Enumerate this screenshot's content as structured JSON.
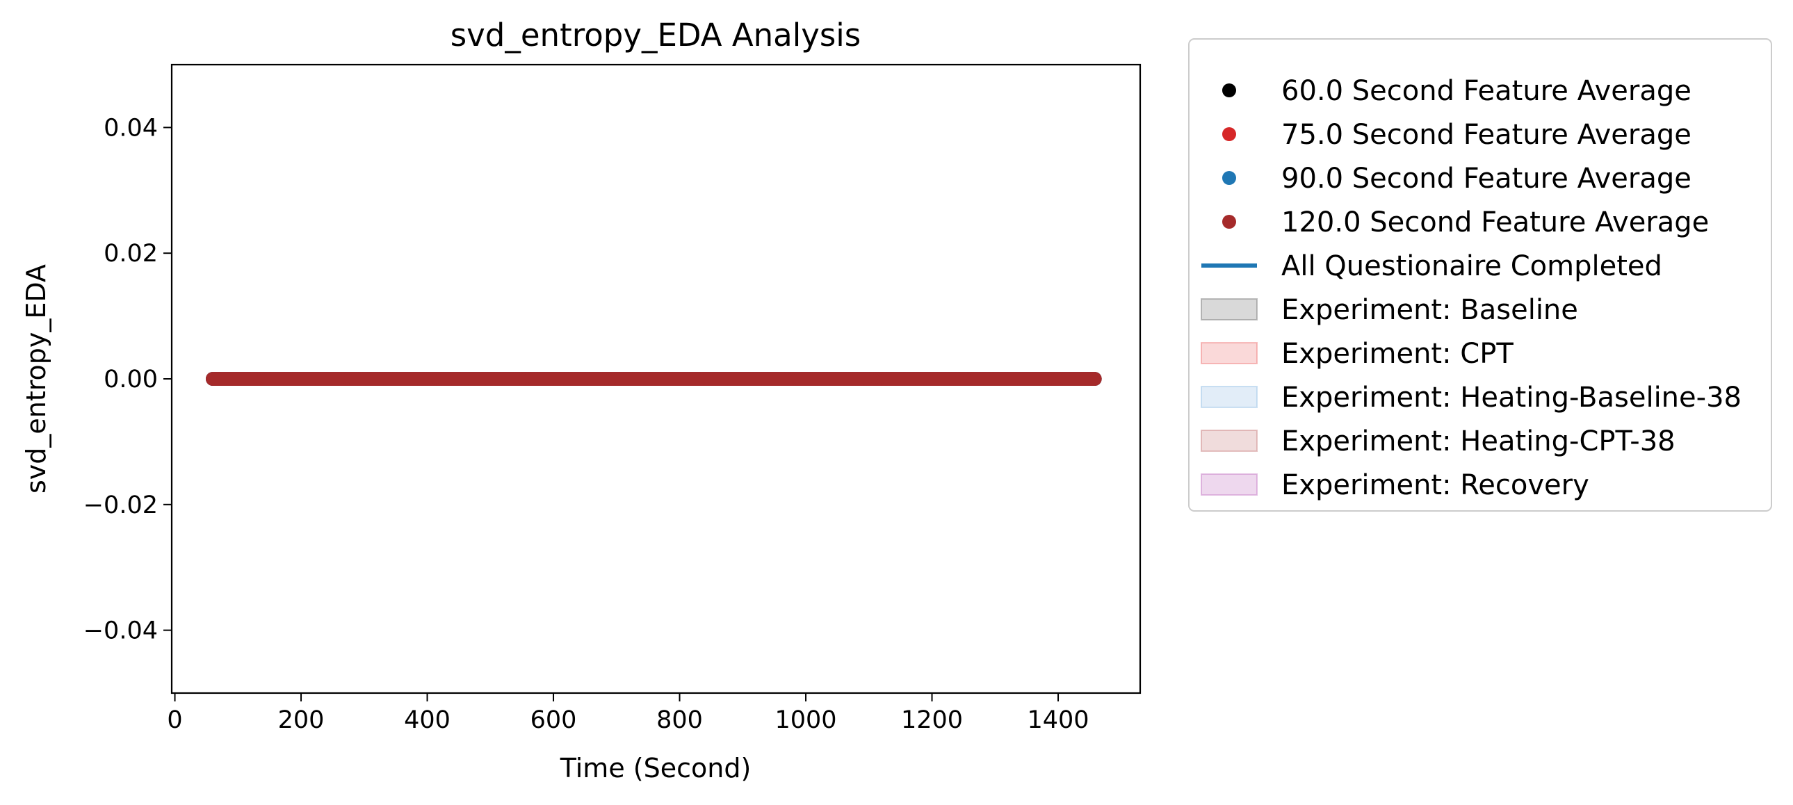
{
  "chart_data": {
    "type": "scatter",
    "title": "svd_entropy_EDA Analysis",
    "xlabel": "Time (Second)",
    "ylabel": "svd_entropy_EDA",
    "xlim": [
      -5,
      1530
    ],
    "ylim": [
      -0.05,
      0.05
    ],
    "x_ticks": [
      0,
      200,
      400,
      600,
      800,
      1000,
      1200,
      1400
    ],
    "x_tick_labels": [
      "0",
      "200",
      "400",
      "600",
      "800",
      "1000",
      "1200",
      "1400"
    ],
    "y_ticks": [
      0.04,
      0.02,
      0.0,
      -0.02,
      -0.04
    ],
    "y_tick_labels": [
      "0.04",
      "0.02",
      "0.00",
      "−0.02",
      "−0.04"
    ],
    "grid": false,
    "legend_position": "outside-right",
    "series": [
      {
        "name": "60.0 Second Feature Average",
        "color": "#000000",
        "marker": "dot",
        "x_range": [
          60,
          1460
        ],
        "step": 3,
        "y": 0.0
      },
      {
        "name": "75.0 Second Feature Average",
        "color": "#d62728",
        "marker": "dot",
        "x_range": [
          60,
          1460
        ],
        "step": 3,
        "y": 0.0
      },
      {
        "name": "90.0 Second Feature Average",
        "color": "#1f77b4",
        "marker": "dot",
        "x_range": [
          60,
          1460
        ],
        "step": 3,
        "y": 0.0
      },
      {
        "name": "120.0 Second Feature Average",
        "color": "#a52a2a",
        "marker": "dot",
        "x_range": [
          60,
          1460
        ],
        "step": 3,
        "y": 0.0
      }
    ],
    "legend": [
      {
        "label": "60.0 Second Feature Average",
        "kind": "marker",
        "color": "#000000"
      },
      {
        "label": "75.0 Second Feature Average",
        "kind": "marker",
        "color": "#d62728"
      },
      {
        "label": "90.0 Second Feature Average",
        "kind": "marker",
        "color": "#1f77b4"
      },
      {
        "label": "120.0 Second Feature Average",
        "kind": "marker",
        "color": "#a52a2a"
      },
      {
        "label": "All Questionaire Completed",
        "kind": "line",
        "color": "#1f77b4"
      },
      {
        "label": "Experiment: Baseline",
        "kind": "patch",
        "color": "#808080"
      },
      {
        "label": "Experiment: CPT",
        "kind": "patch",
        "color": "#f08080"
      },
      {
        "label": "Experiment: Heating-Baseline-38",
        "kind": "patch",
        "color": "#9ec5e8"
      },
      {
        "label": "Experiment: Heating-CPT-38",
        "kind": "patch",
        "color": "#cd8a8a"
      },
      {
        "label": "Experiment: Recovery",
        "kind": "patch",
        "color": "#c77fc7"
      }
    ]
  }
}
